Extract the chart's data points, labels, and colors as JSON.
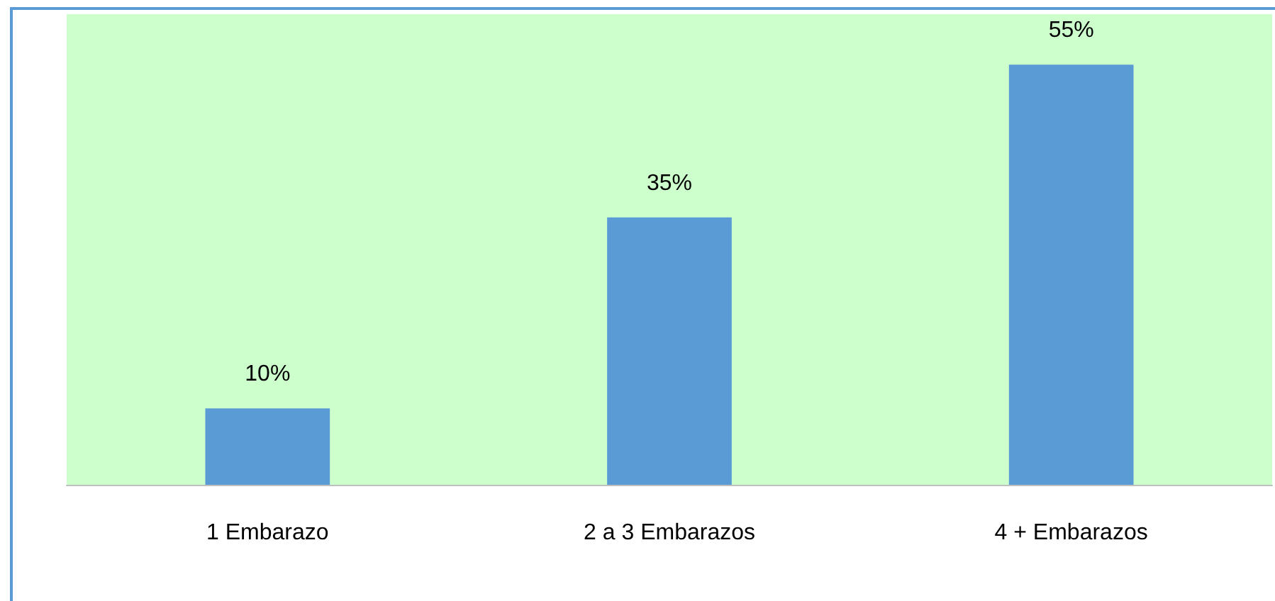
{
  "chart_data": {
    "type": "bar",
    "categories": [
      "1 Embarazo",
      "2 a 3 Embarazos",
      "4 + Embarazos"
    ],
    "values": [
      10,
      35,
      55
    ],
    "value_labels": [
      "10%",
      "35%",
      "55%"
    ],
    "color": "#5b9bd5"
  }
}
